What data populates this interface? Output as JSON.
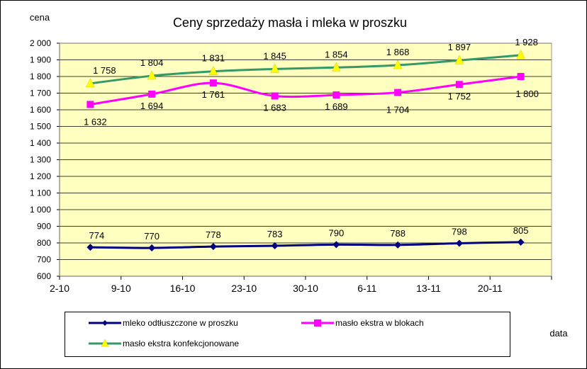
{
  "chart_data": {
    "type": "line",
    "title": "Ceny sprzedaży masła i mleka w proszku",
    "ylabel": "cena",
    "xlabel": "data",
    "categories": [
      "2-10",
      "9-10",
      "16-10",
      "23-10",
      "30-10",
      "6-11",
      "13-11",
      "20-11"
    ],
    "ylim": [
      600,
      2000
    ],
    "ytick_step": 100,
    "yticks": [
      "600",
      "700",
      "800",
      "900",
      "1 000",
      "1 100",
      "1 200",
      "1 300",
      "1 400",
      "1 500",
      "1 600",
      "1 700",
      "1 800",
      "1 900",
      "2 000"
    ],
    "grid": true,
    "legend_position": "bottom",
    "plot_background": "#ffffc0",
    "series": [
      {
        "name": "mleko odtłuszczone w proszku",
        "color": "#000080",
        "marker": "diamond",
        "values": [
          774,
          770,
          778,
          783,
          790,
          788,
          798,
          805
        ],
        "labels": [
          "774",
          "770",
          "778",
          "783",
          "790",
          "788",
          "798",
          "805"
        ]
      },
      {
        "name": "masło ekstra w blokach",
        "color": "#ff00ff",
        "marker": "square",
        "values": [
          1632,
          1694,
          1761,
          1683,
          1689,
          1704,
          1752,
          1800
        ],
        "labels": [
          "1 632",
          "1 694",
          "1 761",
          "1 683",
          "1 689",
          "1 704",
          "1 752",
          "1 800"
        ]
      },
      {
        "name": "masło ekstra konfekcjonowane",
        "color": "#339966",
        "marker": "triangle",
        "marker_color": "#ffff00",
        "values": [
          1758,
          1804,
          1831,
          1845,
          1854,
          1868,
          1897,
          1928
        ],
        "labels": [
          "1 758",
          "1 804",
          "1 831",
          "1 845",
          "1 854",
          "1 868",
          "1 897",
          "1 928"
        ]
      }
    ]
  }
}
